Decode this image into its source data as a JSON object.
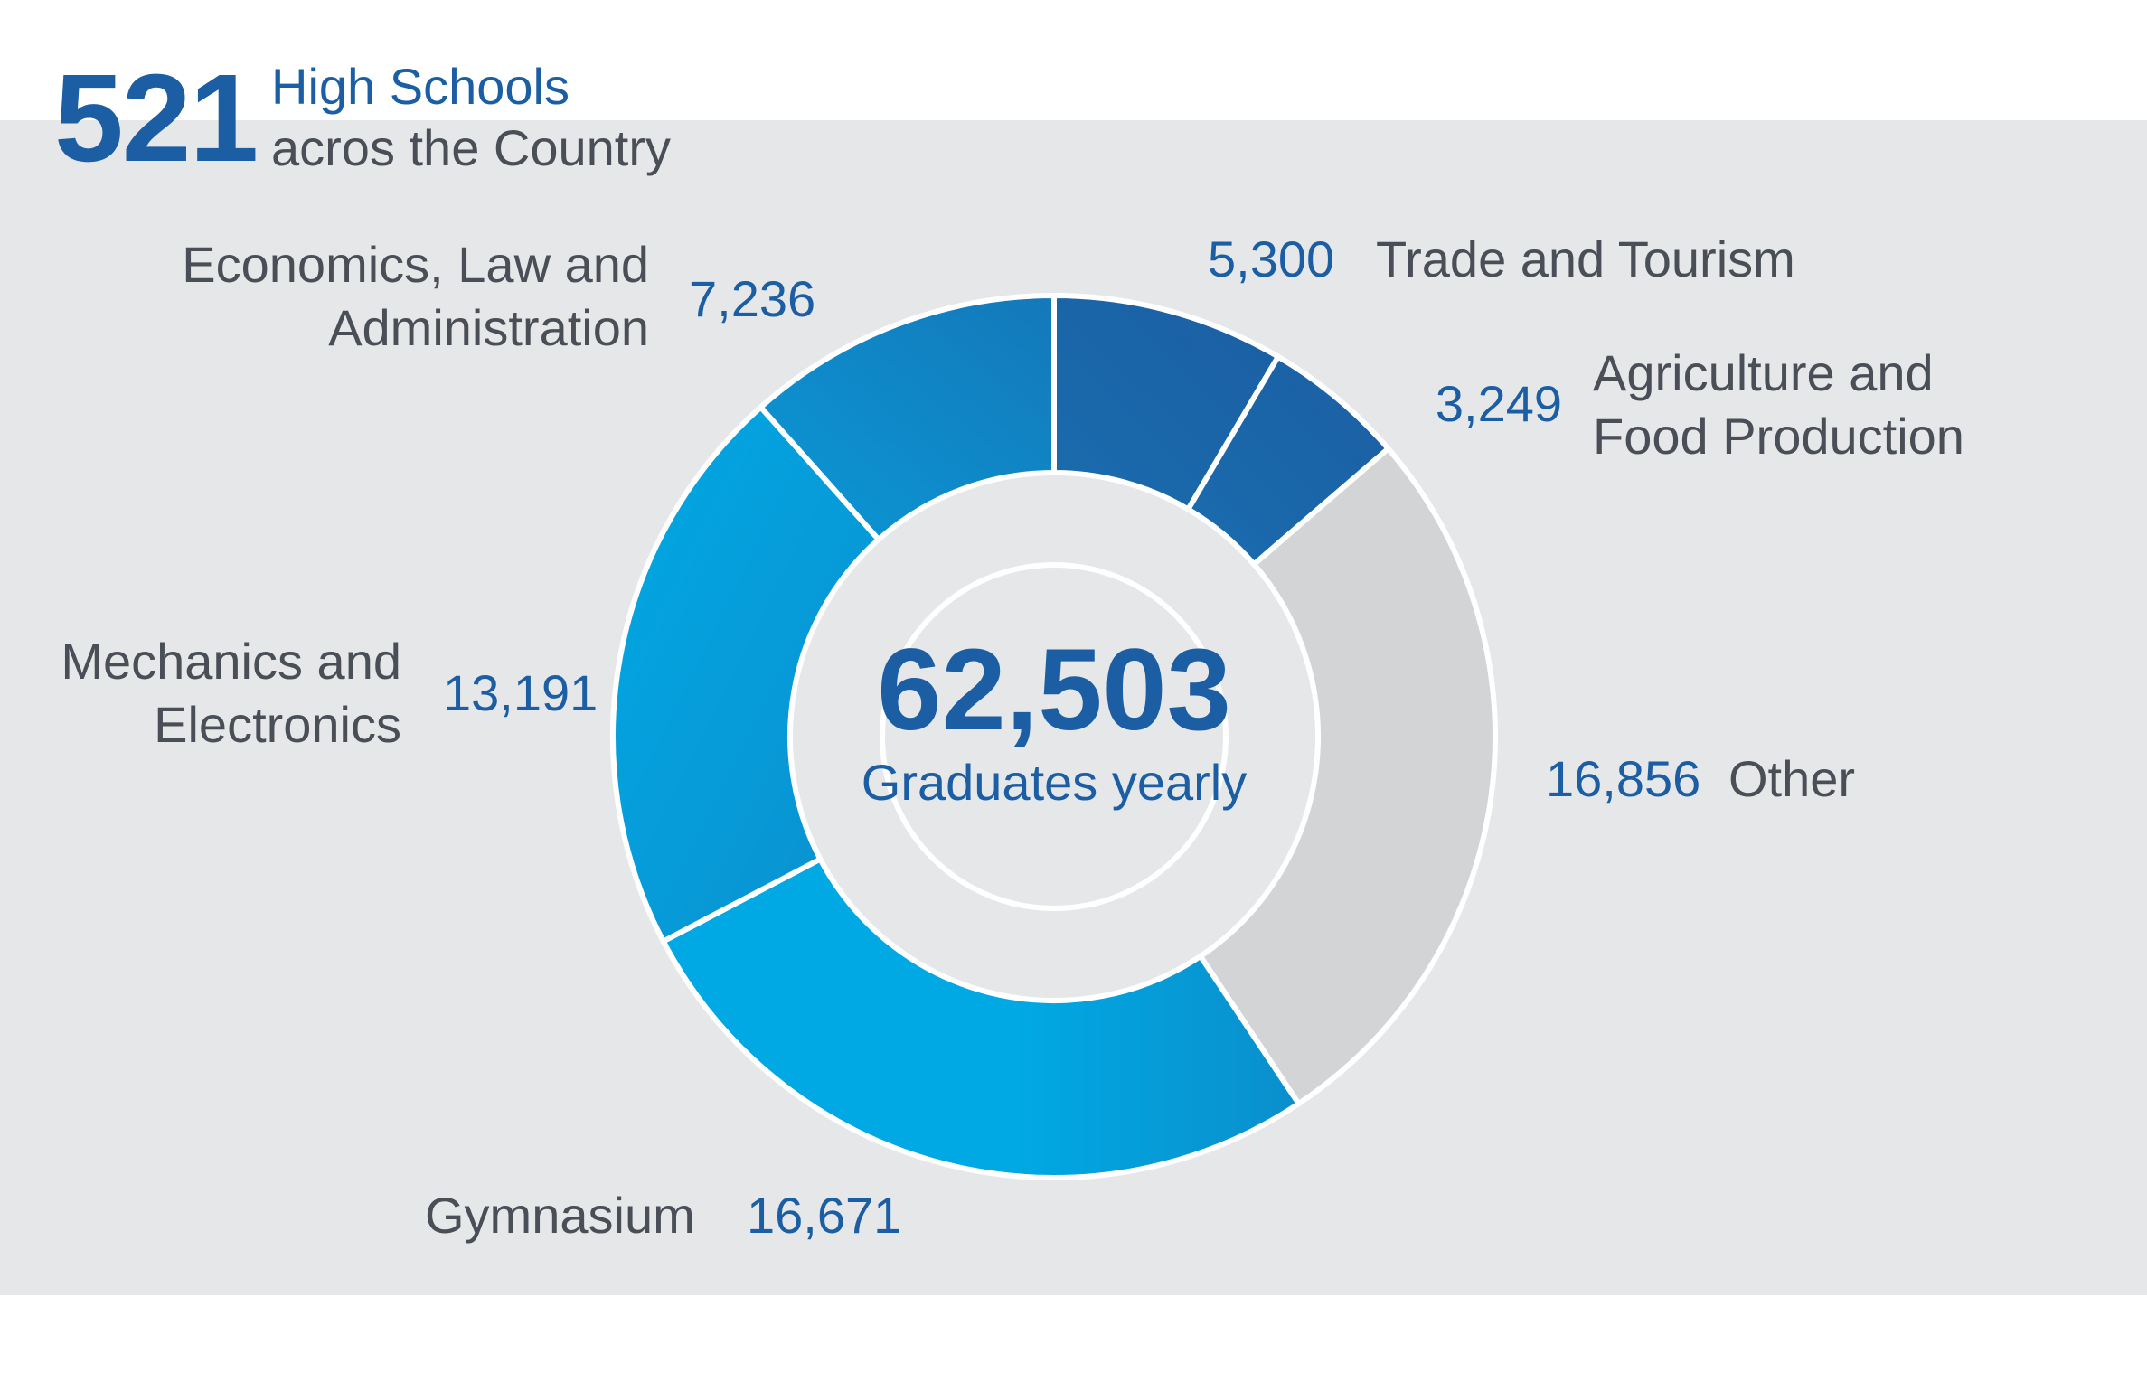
{
  "header": {
    "count": "521",
    "line1": "High Schools",
    "line2": "acros the Country"
  },
  "center": {
    "total": "62,503",
    "subtitle": "Graduates yearly"
  },
  "labels": {
    "trade": {
      "value": "5,300",
      "name": "Trade and Tourism"
    },
    "agri": {
      "value": "3,249",
      "name1": "Agriculture and",
      "name2": "Food Production"
    },
    "other": {
      "value": "16,856",
      "name": "Other"
    },
    "gym": {
      "name": "Gymnasium",
      "value": "16,671"
    },
    "mech": {
      "name1": "Mechanics and",
      "name2": "Electronics",
      "value": "13,191"
    },
    "econ": {
      "name1": "Economics, Law and",
      "name2": "Administration",
      "value": "7,236"
    }
  },
  "colors": {
    "dark_blue": "#1b5ea3",
    "mid_blue": "#0f86c6",
    "light_blue": "#00a9e4",
    "grey": "#d3d4d6",
    "panel": "#e6e7e9",
    "text": "#4a4f57"
  },
  "chart_data": {
    "type": "pie",
    "donut": true,
    "total": 62503,
    "categories": [
      "Trade and Tourism",
      "Agriculture and Food Production",
      "Other",
      "Gymnasium",
      "Mechanics and Electronics",
      "Economics, Law and Administration"
    ],
    "values": [
      5300,
      3249,
      16856,
      16671,
      13191,
      7236
    ],
    "colors": [
      "#1b5ea3",
      "#1b5ea3",
      "#d3d4d6",
      "#00a9e4",
      "#00a9e4",
      "#0f86c6"
    ]
  }
}
